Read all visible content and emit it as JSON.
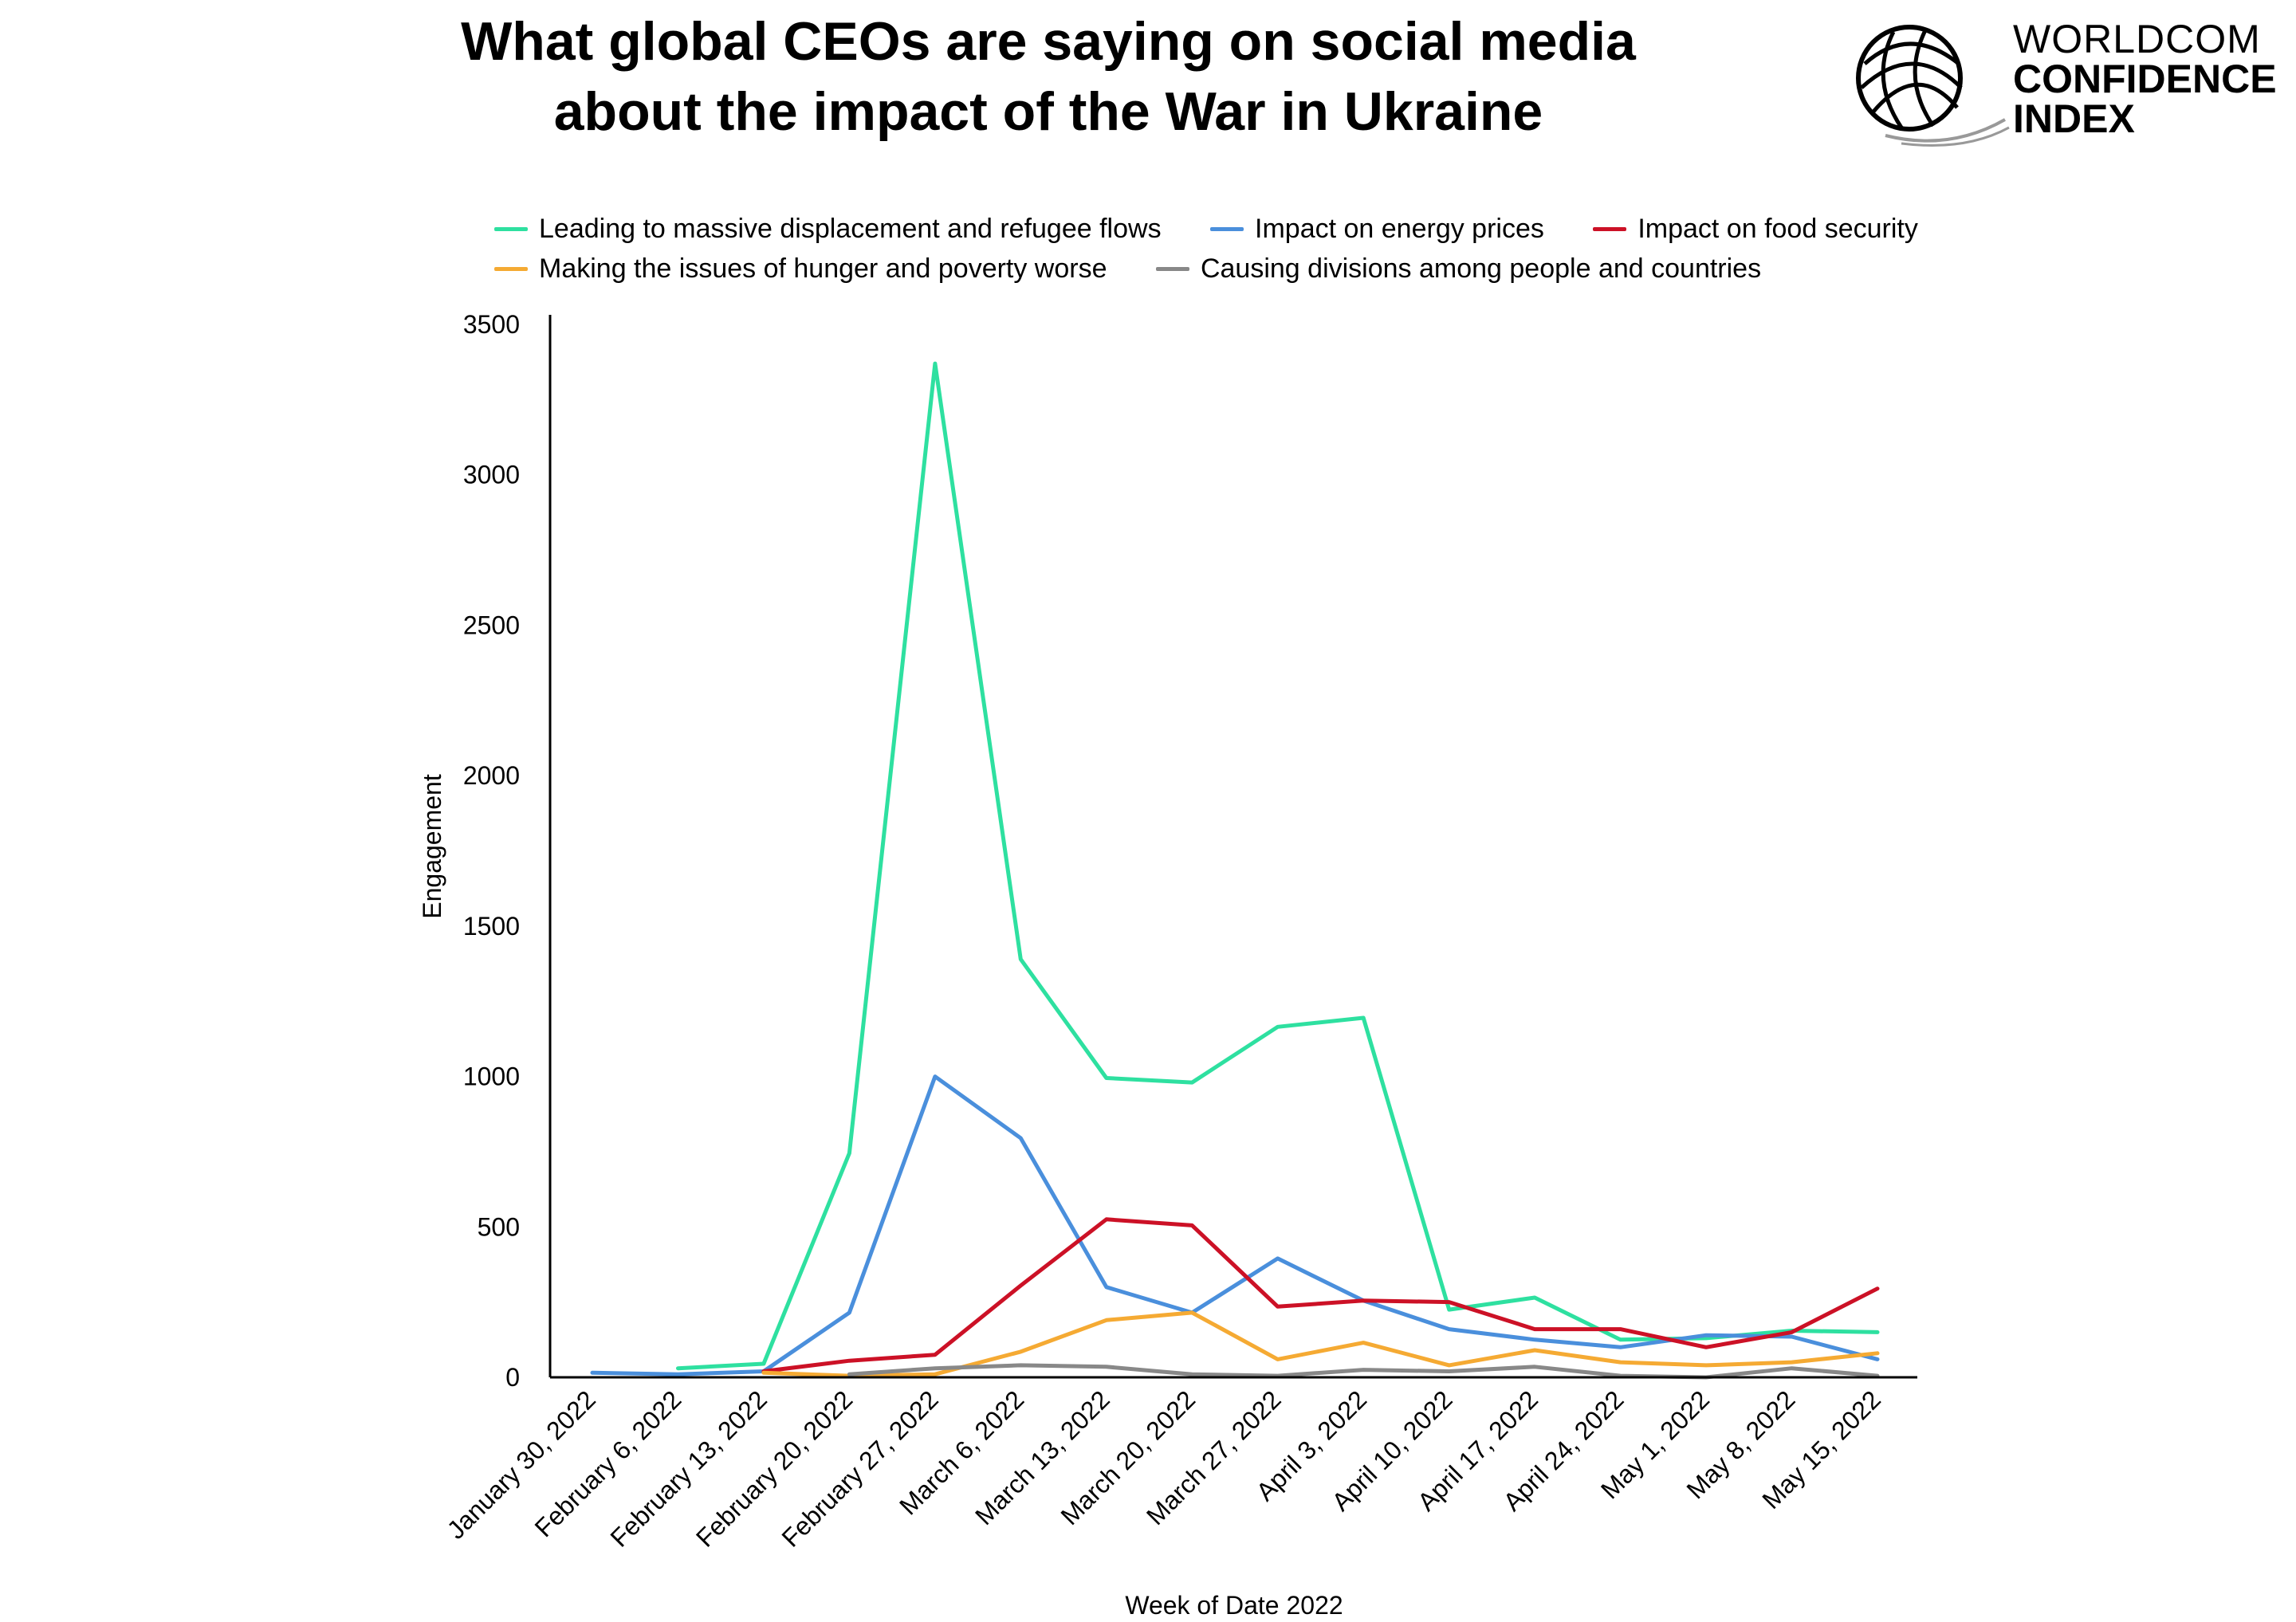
{
  "header": {
    "title_line1": "What global CEOs are saying on social media",
    "title_line2": "about the impact of the War in Ukraine"
  },
  "logo": {
    "line1": "WORLDCOM",
    "line2": "CONFIDENCE",
    "line3": "INDEX",
    "icon": "globe-icon"
  },
  "chart_data": {
    "type": "line",
    "title": "",
    "xlabel": "Week of Date 2022",
    "ylabel": "Engagement",
    "ylim": [
      0,
      3500
    ],
    "yticks": [
      0,
      500,
      1000,
      1500,
      2000,
      2500,
      3000,
      3500
    ],
    "grid": false,
    "legend_position": "top",
    "categories": [
      "January 30, 2022",
      "February 6, 2022",
      "February 13, 2022",
      "February 20, 2022",
      "February 27, 2022",
      "March 6, 2022",
      "March 13, 2022",
      "March 20, 2022",
      "March 27, 2022",
      "April 3, 2022",
      "April 10, 2022",
      "April 17, 2022",
      "April 24, 2022",
      "May 1, 2022",
      "May 8, 2022",
      "May 15, 2022"
    ],
    "series": [
      {
        "name": "Leading to massive displacement and refugee flows",
        "color": "#2ee0a0",
        "values": [
          null,
          30,
          45,
          745,
          3370,
          1390,
          995,
          980,
          1165,
          1195,
          225,
          265,
          125,
          130,
          155,
          150
        ]
      },
      {
        "name": "Impact on energy prices",
        "color": "#4a8fdc",
        "values": [
          15,
          10,
          20,
          215,
          1000,
          795,
          300,
          215,
          395,
          255,
          160,
          125,
          100,
          140,
          135,
          60
        ]
      },
      {
        "name": "Impact on food security",
        "color": "#cc1126",
        "values": [
          null,
          null,
          20,
          55,
          75,
          305,
          525,
          505,
          235,
          255,
          250,
          160,
          160,
          100,
          150,
          295
        ]
      },
      {
        "name": "Making the issues of hunger and poverty worse",
        "color": "#f5aa33",
        "values": [
          null,
          null,
          15,
          5,
          10,
          85,
          190,
          215,
          60,
          115,
          40,
          90,
          50,
          40,
          50,
          80
        ]
      },
      {
        "name": "Causing divisions among people and countries",
        "color": "#888888",
        "values": [
          null,
          null,
          null,
          10,
          30,
          40,
          35,
          10,
          5,
          25,
          20,
          35,
          5,
          0,
          30,
          5
        ]
      }
    ]
  }
}
